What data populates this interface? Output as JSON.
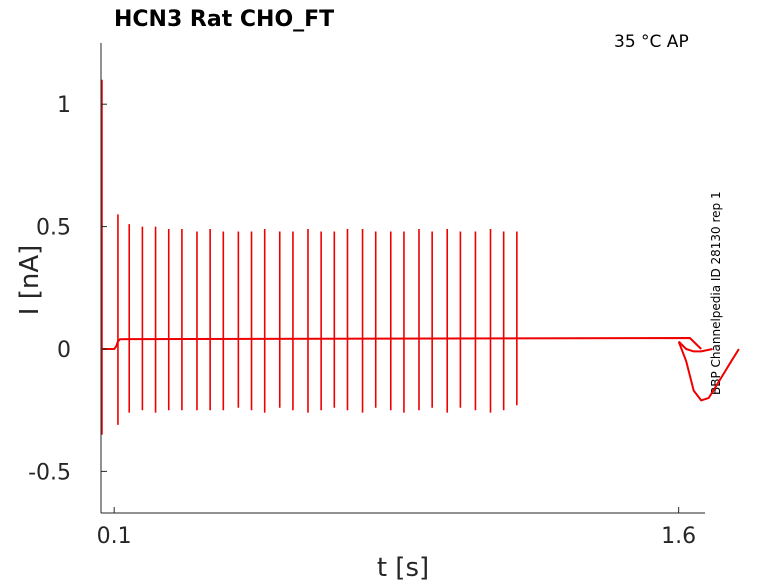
{
  "chart_data": {
    "type": "line",
    "title": "HCN3  Rat  CHO_FT",
    "condition": "35 °C  AP",
    "side_label": "BBP Channelpedia ID 28130 rep 1",
    "xlabel": "t [s]",
    "ylabel": "I [nA]",
    "xlim": [
      0.065,
      1.67
    ],
    "ylim": [
      -0.67,
      1.25
    ],
    "x_ticks": [
      0.1,
      1.6
    ],
    "x_tick_labels": [
      "0.1",
      "1.6"
    ],
    "y_ticks": [
      -0.5,
      0,
      0.5,
      1
    ],
    "y_tick_labels": [
      "-0.5",
      "0",
      "0.5",
      "1"
    ],
    "grid": false,
    "legend": "none",
    "color": "#ee0000",
    "series": [
      {
        "baseline": {
          "x": [
            0.065,
            0.1,
            0.105,
            0.11,
            0.115,
            1.63,
            1.66
          ],
          "y": [
            0.0,
            0.0,
            0.01,
            0.03,
            0.04,
            0.045,
            0.0
          ]
        },
        "initial_transient": {
          "x": 0.067,
          "peak": 1.1,
          "trough": -0.35
        },
        "spikes": {
          "x": [
            0.11,
            0.14,
            0.175,
            0.21,
            0.245,
            0.28,
            0.32,
            0.355,
            0.39,
            0.43,
            0.465,
            0.5,
            0.54,
            0.575,
            0.615,
            0.65,
            0.685,
            0.72,
            0.76,
            0.795,
            0.835,
            0.87,
            0.91,
            0.945,
            0.985,
            1.02,
            1.06,
            1.1,
            1.135,
            1.17
          ],
          "peaks": [
            0.55,
            0.51,
            0.5,
            0.5,
            0.49,
            0.49,
            0.48,
            0.49,
            0.48,
            0.48,
            0.48,
            0.49,
            0.48,
            0.48,
            0.49,
            0.48,
            0.48,
            0.49,
            0.49,
            0.48,
            0.48,
            0.48,
            0.49,
            0.48,
            0.49,
            0.48,
            0.48,
            0.49,
            0.48,
            0.48
          ],
          "troughs": [
            -0.31,
            -0.26,
            -0.25,
            -0.26,
            -0.25,
            -0.25,
            -0.25,
            -0.25,
            -0.25,
            -0.24,
            -0.25,
            -0.26,
            -0.24,
            -0.25,
            -0.26,
            -0.25,
            -0.24,
            -0.25,
            -0.26,
            -0.24,
            -0.25,
            -0.26,
            -0.25,
            -0.24,
            -0.26,
            -0.24,
            -0.25,
            -0.26,
            -0.25,
            -0.23
          ]
        },
        "tail_dip": {
          "x": [
            1.6,
            1.62,
            1.64,
            1.66,
            1.68,
            1.7,
            1.72,
            1.74,
            1.76
          ],
          "y": [
            0.03,
            -0.05,
            -0.17,
            -0.21,
            -0.2,
            -0.15,
            -0.1,
            -0.05,
            0.0
          ]
        },
        "tail_upper": {
          "x": [
            1.6,
            1.62,
            1.64,
            1.66,
            1.69
          ],
          "y": [
            0.03,
            0.0,
            -0.01,
            -0.01,
            0.0
          ]
        }
      }
    ]
  }
}
